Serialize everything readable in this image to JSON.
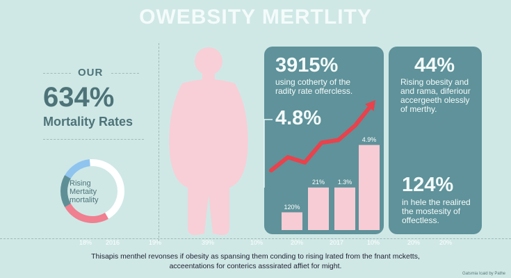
{
  "title": "OWEBSITY MERTLITY",
  "left": {
    "eyebrow": "OUR",
    "big_value": "634%",
    "big_label": "Mortality Rates",
    "donut_text": [
      "Rising",
      "Mertaity",
      "mortality"
    ],
    "donut_colors": [
      "#8fc4ef",
      "#5f8f96",
      "#f07f8f",
      "#ffffff"
    ]
  },
  "panel_center": {
    "headline": "3915%",
    "text": [
      "using cotherty of the",
      "radity rate offercless."
    ],
    "mid_value": "4.8%"
  },
  "panel_right": {
    "headline": "44%",
    "text": [
      "Rising obesity and",
      "and rama, diferiour",
      "accergeeth olessly",
      "of merthy."
    ],
    "bottom_value": "124%",
    "bottom_text": [
      "in hele the realired",
      "the mostesity of",
      "offectless."
    ]
  },
  "chart_data": {
    "type": "bar",
    "bar_labels": [
      "120%",
      "21%",
      "1.3%",
      "4.9%"
    ],
    "values": [
      1,
      2.4,
      2.4,
      4.8
    ],
    "trend_line": [
      1.2,
      2.2,
      1.8,
      3.3,
      3.5,
      4.6,
      6.2
    ],
    "x_ticks": [
      "18%",
      "2016",
      "19%",
      "39%",
      "10%",
      "20%",
      "2017",
      "10%",
      "20%",
      "20%"
    ],
    "colors": {
      "bars": "#f8ccd5",
      "trend": "#e8424c",
      "panel": "#5f929a"
    }
  },
  "caption": [
    "Thisapis menthel revonses if obesity as spansing them conding to rising lrated from the fnant mcketts,",
    "acceentations for conterics asssirated affiet for might."
  ],
  "credit": "Gatsmia Icaid by Pathe"
}
